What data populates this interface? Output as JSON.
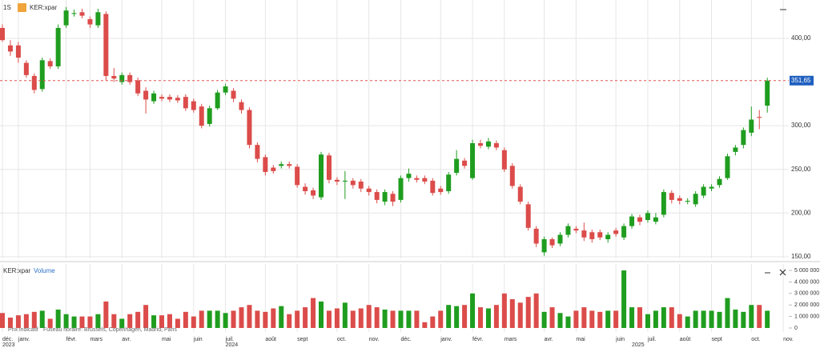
{
  "chart_data": {
    "type": "candlestick",
    "interval": "1S",
    "symbol": "KER:xpar",
    "volume_title": "Volume",
    "footer": [
      "Prix indicatif",
      "Fuseau horaire: Brussels, Copenhagen, Madrid, Paris"
    ],
    "up_color": "#1f9d1f",
    "down_color": "#db4c4a",
    "categories": [
      "déc.",
      null,
      "janv.",
      null,
      null,
      null,
      null,
      null,
      "févr.",
      null,
      null,
      "mars",
      null,
      null,
      null,
      "avr.",
      null,
      null,
      null,
      null,
      "mai",
      null,
      null,
      null,
      "juin",
      null,
      null,
      null,
      "juil.",
      null,
      null,
      null,
      null,
      "août",
      null,
      null,
      null,
      "sept",
      null,
      null,
      null,
      null,
      "oct.",
      null,
      null,
      null,
      "nov.",
      null,
      null,
      null,
      "déc.",
      null,
      null,
      null,
      null,
      "janv.",
      null,
      null,
      null,
      "févr.",
      null,
      null,
      null,
      "mars",
      null,
      null,
      null,
      null,
      "avr.",
      null,
      null,
      null,
      "mai",
      null,
      null,
      null,
      null,
      "juin",
      null,
      null,
      null,
      "juil.",
      null,
      null,
      null,
      "août",
      null,
      null,
      null,
      "sept",
      null,
      null,
      null,
      null,
      "oct.",
      null,
      null,
      null,
      "nov."
    ],
    "years": [
      "2023",
      null,
      null,
      null,
      null,
      null,
      null,
      null,
      null,
      null,
      null,
      null,
      null,
      null,
      null,
      null,
      null,
      null,
      null,
      null,
      null,
      null,
      null,
      null,
      null,
      null,
      null,
      null,
      "2024",
      null,
      null,
      null,
      null,
      null,
      null,
      null,
      null,
      null,
      null,
      null,
      null,
      null,
      null,
      null,
      null,
      null,
      null,
      null,
      null,
      null,
      null,
      null,
      null,
      null,
      null,
      null,
      null,
      null,
      null,
      null,
      null,
      null,
      null,
      null,
      null,
      null,
      null,
      null,
      null,
      null,
      null,
      null,
      null,
      null,
      null,
      null,
      null,
      null,
      null,
      "2025",
      null,
      null,
      null,
      null,
      null,
      null,
      null,
      null,
      null,
      null,
      null,
      null,
      null,
      null,
      null,
      null,
      null,
      null,
      null
    ],
    "open": [
      412,
      392,
      392,
      372,
      357,
      342,
      374,
      368,
      415,
      428,
      430,
      422,
      415,
      428,
      357,
      350,
      358,
      352,
      340,
      328,
      333,
      333,
      332,
      333,
      328,
      322,
      302,
      320,
      338,
      340,
      327,
      318,
      278,
      264,
      252,
      254,
      256,
      253,
      230,
      226,
      218,
      266,
      238,
      236,
      237,
      236,
      228,
      224,
      213,
      222,
      215,
      240,
      240,
      240,
      237,
      228,
      225,
      246,
      260,
      240,
      280,
      276,
      280,
      272,
      254,
      230,
      210,
      182,
      155,
      170,
      165,
      175,
      182,
      180,
      178,
      178,
      170,
      180,
      172,
      185,
      195,
      192,
      190,
      198,
      223,
      217,
      213,
      210,
      220,
      228,
      232,
      240,
      270,
      278,
      292,
      310,
      323,
      null,
      null
    ],
    "high": [
      416,
      398,
      396,
      375,
      360,
      378,
      377,
      416,
      436,
      433,
      434,
      425,
      434,
      431,
      366,
      361,
      361,
      355,
      344,
      340,
      336,
      336,
      335,
      336,
      331,
      325,
      323,
      341,
      348,
      343,
      330,
      321,
      281,
      267,
      255,
      259,
      259,
      256,
      234,
      229,
      270,
      269,
      241,
      248,
      240,
      239,
      231,
      227,
      227,
      225,
      243,
      251,
      243,
      243,
      240,
      231,
      247,
      272,
      263,
      284,
      284,
      286,
      283,
      275,
      257,
      233,
      213,
      185,
      173,
      172,
      178,
      188,
      185,
      189,
      181,
      181,
      178,
      183,
      188,
      199,
      198,
      203,
      200,
      227,
      226,
      220,
      217,
      225,
      233,
      233,
      242,
      268,
      278,
      298,
      322,
      318,
      355,
      null,
      null
    ],
    "low": [
      396,
      380,
      372,
      355,
      337,
      339,
      365,
      365,
      412,
      425,
      423,
      412,
      412,
      352,
      350,
      347,
      347,
      334,
      314,
      325,
      328,
      327,
      326,
      317,
      315,
      297,
      299,
      318,
      335,
      327,
      314,
      274,
      258,
      243,
      245,
      251,
      251,
      229,
      221,
      216,
      215,
      234,
      232,
      216,
      228,
      224,
      220,
      211,
      209,
      208,
      212,
      236,
      235,
      233,
      220,
      221,
      222,
      243,
      251,
      238,
      274,
      273,
      272,
      247,
      228,
      210,
      180,
      161,
      151,
      160,
      162,
      172,
      177,
      168,
      166,
      169,
      166,
      173,
      169,
      182,
      186,
      189,
      187,
      195,
      211,
      210,
      210,
      207,
      217,
      225,
      229,
      238,
      266,
      274,
      288,
      296,
      315,
      null,
      null
    ],
    "close": [
      398,
      385,
      378,
      358,
      341,
      375,
      368,
      412,
      432,
      429,
      426,
      416,
      430,
      357,
      354,
      358,
      350,
      337,
      330,
      337,
      331,
      330,
      329,
      320,
      318,
      300,
      320,
      338,
      345,
      331,
      318,
      278,
      262,
      247,
      248,
      256,
      254,
      232,
      225,
      220,
      267,
      238,
      236,
      237,
      232,
      228,
      224,
      215,
      224,
      213,
      240,
      245,
      238,
      236,
      223,
      224,
      244,
      262,
      254,
      280,
      277,
      282,
      275,
      250,
      231,
      213,
      183,
      165,
      170,
      163,
      175,
      185,
      180,
      172,
      170,
      172,
      175,
      176,
      185,
      196,
      190,
      200,
      195,
      224,
      215,
      214,
      214,
      222,
      230,
      230,
      239,
      265,
      275,
      295,
      307,
      309,
      351.65,
      null,
      null
    ],
    "volume": [
      1300000,
      900000,
      1100000,
      1200000,
      1400000,
      1500000,
      800000,
      1600000,
      1200000,
      1000000,
      1000000,
      1000000,
      1200000,
      2300000,
      1200000,
      800000,
      1200000,
      1400000,
      2000000,
      1100000,
      1100000,
      1200000,
      800000,
      1400000,
      1000000,
      1500000,
      1500000,
      1500000,
      1300000,
      1500000,
      1800000,
      2000000,
      1500000,
      1400000,
      1700000,
      1900000,
      1200000,
      1500000,
      1800000,
      2600000,
      2300000,
      1500000,
      1700000,
      2200000,
      1500000,
      1700000,
      2000000,
      1800000,
      1600000,
      1500000,
      1500000,
      1500000,
      1500000,
      500000,
      1000000,
      1500000,
      2000000,
      1900000,
      2000000,
      3000000,
      1800000,
      1700000,
      2000000,
      3000000,
      2500000,
      2200000,
      2700000,
      3000000,
      1400000,
      1800000,
      1300000,
      1000000,
      1500000,
      1800000,
      1500000,
      1400000,
      1500000,
      1500000,
      5000000,
      1800000,
      1800000,
      1200000,
      1500000,
      1800000,
      1800000,
      1200000,
      1000000,
      1500000,
      1500000,
      1500000,
      1400000,
      2600000,
      1600000,
      1400000,
      2000000,
      2000000,
      1500000,
      null,
      null
    ],
    "ylim": [
      148,
      444
    ],
    "yticks": [
      {
        "value": 150,
        "label": "150,00"
      },
      {
        "value": 200,
        "label": "200,00"
      },
      {
        "value": 250,
        "label": "250,00"
      },
      {
        "value": 300,
        "label": "300,00"
      },
      {
        "value": 400,
        "label": "400,00"
      }
    ],
    "last_price": {
      "value": 351.65,
      "label": "351,65"
    },
    "volume_lim": [
      -350000,
      5350000
    ],
    "volume_ticks": [
      {
        "value": 0,
        "label": "0"
      },
      {
        "value": 1000000,
        "label": "1 000 000"
      },
      {
        "value": 2000000,
        "label": "2 000 000"
      },
      {
        "value": 3000000,
        "label": "3 000 000"
      },
      {
        "value": 4000000,
        "label": "4 000 000"
      },
      {
        "value": 5000000,
        "label": "5 000 000"
      }
    ],
    "grid": true
  }
}
